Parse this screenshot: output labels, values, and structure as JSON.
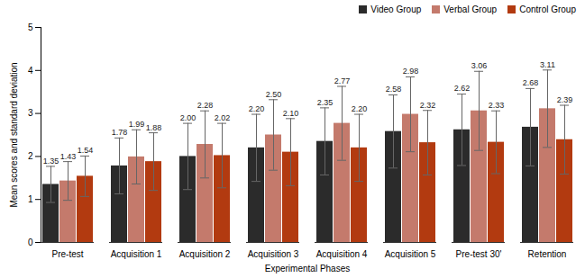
{
  "chart_data": {
    "type": "bar",
    "x_label": "Experimental Phases",
    "y_label": "Mean scores and standard deviation",
    "categories": [
      "Pre-test",
      "Acquisition 1",
      "Acquisition 2",
      "Acquisition 3",
      "Acquisition 4",
      "Acquisition 5",
      "Pre-test 30'",
      "Retention"
    ],
    "series": [
      {
        "name": "Video Group",
        "color": "#2b2b2b",
        "values": [
          1.35,
          1.78,
          2.0,
          2.2,
          2.35,
          2.58,
          2.62,
          2.68
        ],
        "value_labels": [
          "1.35",
          "1.78",
          "2.00",
          "2.20",
          "2.35",
          "2.58",
          "2.62",
          "2.68"
        ],
        "errors": [
          0.42,
          0.65,
          0.77,
          0.78,
          0.78,
          0.85,
          0.83,
          0.9
        ]
      },
      {
        "name": "Verbal Group",
        "color": "#c47a6c",
        "values": [
          1.43,
          1.99,
          2.28,
          2.5,
          2.77,
          2.98,
          3.06,
          3.11
        ],
        "value_labels": [
          "1.43",
          "1.99",
          "2.28",
          "2.50",
          "2.77",
          "2.98",
          "3.06",
          "3.11"
        ],
        "errors": [
          0.45,
          0.63,
          0.78,
          0.82,
          0.86,
          0.87,
          0.92,
          0.9
        ]
      },
      {
        "name": "Control Group",
        "color": "#b23a10",
        "values": [
          1.54,
          1.88,
          2.02,
          2.1,
          2.2,
          2.32,
          2.33,
          2.39
        ],
        "value_labels": [
          "1.54",
          "1.88",
          "2.02",
          "2.10",
          "2.20",
          "2.32",
          "2.33",
          "2.39"
        ],
        "errors": [
          0.47,
          0.67,
          0.75,
          0.78,
          0.78,
          0.75,
          0.73,
          0.8
        ]
      }
    ],
    "ylim": [
      0,
      5
    ],
    "yticks": [
      0,
      1,
      2,
      3,
      4,
      5
    ],
    "data_labels": true,
    "legend": "top-right",
    "grid": false
  }
}
